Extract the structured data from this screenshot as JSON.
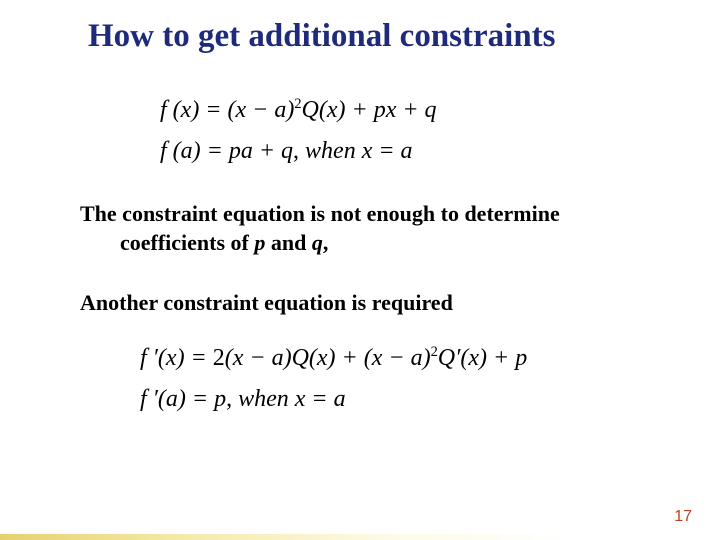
{
  "colors": {
    "title": "#1f2a7a",
    "body": "#000000",
    "page_number": "#c04020",
    "background": "#ffffff",
    "bar_gradient": [
      "#e8d070",
      "#f5e9a8",
      "#fdfbe8",
      "#ffffff"
    ]
  },
  "fonts": {
    "title_size_pt": 33,
    "body_size_pt": 22,
    "equation_size_pt": 24,
    "page_number_size_pt": 16,
    "family": "Times New Roman"
  },
  "title": "How to get additional constraints",
  "equations1": {
    "line1_prefix": "f (x) = (x − a)",
    "line1_exp": "2",
    "line1_suffix": "Q(x) + px + q",
    "line2_prefix": "f (a) = pa + q",
    "line2_sep": ",",
    "line2_cond": "   when x = a"
  },
  "para1_a": "The constraint equation is not enough to determine",
  "para1_b_pre": "coefficients of  ",
  "para1_p": "p",
  "para1_mid": " and  ",
  "para1_q": "q",
  "para1_b_post": ",",
  "para2": "Another constraint equation is required",
  "equations2": {
    "line1_prefix": "f ′(x) = ",
    "line1_two": "2",
    "line1_mid1": "(x − a)Q(x) + (x − a)",
    "line1_exp": "2",
    "line1_suffix": "Q′(x) + p",
    "line2_prefix": "f ′(a) = p",
    "line2_sep": ",",
    "line2_cond": "   when   x = a"
  },
  "page_number": "17"
}
